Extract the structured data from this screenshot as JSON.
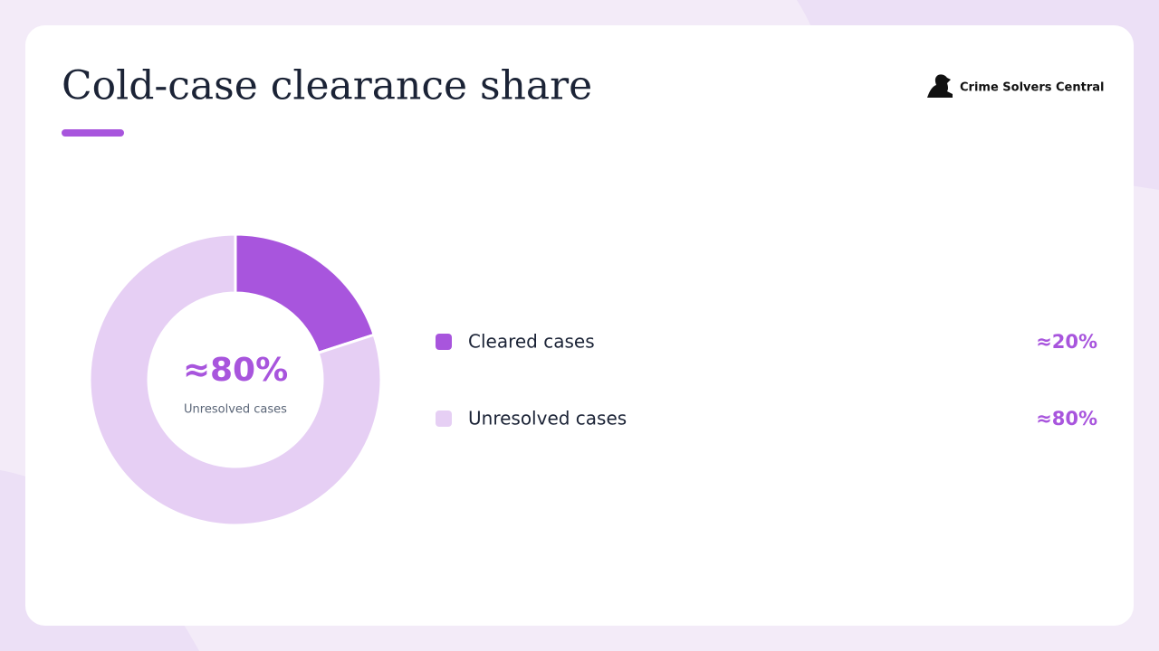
{
  "header": {
    "brand": "Crime Solvers Central"
  },
  "chart_data": {
    "type": "pie",
    "donut": true,
    "title": "Cold-case clearance share",
    "categories": [
      "Cleared cases",
      "Unresolved cases"
    ],
    "values": [
      20,
      80
    ],
    "value_labels": [
      "≈20%",
      "≈80%"
    ],
    "colors": [
      "#a855dd",
      "#e6cff4"
    ]
  }
}
